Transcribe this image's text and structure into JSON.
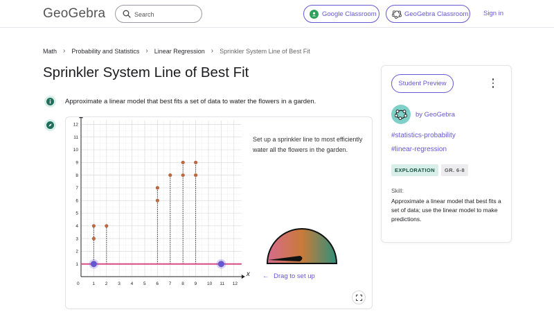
{
  "header": {
    "logo": "GeoGebra",
    "search_placeholder": "Search",
    "google_classroom": "Google Classroom",
    "geogebra_classroom": "GeoGebra Classroom",
    "sign_in": "Sign in"
  },
  "breadcrumbs": [
    "Math",
    "Probability and Statistics",
    "Linear Regression",
    "Sprinkler System Line of Best Fit"
  ],
  "page_title": "Sprinkler System Line of Best Fit",
  "description": "Approximate a linear model that best fits a set of data to water the flowers in a garden.",
  "applet": {
    "instructions": "Set up a sprinkler line to most efficiently water all the flowers in the garden.",
    "drag_label": "Drag to set up",
    "x_axis_label": "x",
    "y_axis_label": "y",
    "x_ticks": [
      "0",
      "1",
      "2",
      "3",
      "4",
      "5",
      "6",
      "7",
      "8",
      "9",
      "10",
      "11",
      "12"
    ],
    "y_ticks": [
      "1",
      "2",
      "3",
      "4",
      "5",
      "6",
      "7",
      "8",
      "9",
      "10",
      "11",
      "12"
    ],
    "flowers": [
      {
        "x": 1,
        "y": 4
      },
      {
        "x": 1,
        "y": 3
      },
      {
        "x": 2,
        "y": 4
      },
      {
        "x": 6,
        "y": 7
      },
      {
        "x": 6,
        "y": 6
      },
      {
        "x": 7,
        "y": 8
      },
      {
        "x": 8,
        "y": 9
      },
      {
        "x": 8,
        "y": 8
      },
      {
        "x": 9,
        "y": 9
      },
      {
        "x": 9,
        "y": 8
      }
    ],
    "sprinkler_line": {
      "start": {
        "x": 1,
        "y": 1
      },
      "end": {
        "x": 11,
        "y": 1
      }
    },
    "colors": {
      "flower": "#b86a45",
      "line": "#d84a82",
      "handle": "#6557d2",
      "accent": "#6557d2"
    }
  },
  "sidebar": {
    "student_preview": "Student Preview",
    "author": "by GeoGebra",
    "tags": [
      "#statistics-probability",
      "#linear-regression"
    ],
    "chips": [
      "EXPLORATION",
      "GR. 6-8"
    ],
    "skill_heading": "Skill:",
    "skill_text": "Approximate a linear model that best fits a set of data; use the linear model to make predictions."
  },
  "icons": {
    "search": "search-icon",
    "google_classroom": "google-classroom-icon",
    "geogebra_classroom": "geogebra-classroom-icon",
    "info": "info-icon",
    "compass": "compass-icon",
    "expand": "fullscreen-icon",
    "more": "more-vertical-icon",
    "author_avatar": "geogebra-logo-icon"
  }
}
